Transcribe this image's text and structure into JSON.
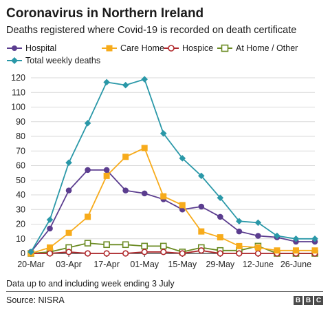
{
  "header": {
    "title": "Coronavirus in Northern Ireland",
    "subtitle": "Deaths registered where Covid-19 is recorded on death certificate"
  },
  "footer": {
    "note": "Data up to and including week ending 3 July",
    "source": "Source: NISRA",
    "logo_letters": [
      "B",
      "B",
      "C"
    ]
  },
  "colors": {
    "hospital": "#5b3d8f",
    "care_home": "#f7ab1b",
    "hospice": "#b0272b",
    "at_home": "#6a8a22",
    "total": "#2a98a8",
    "grid": "#d9d9d9",
    "axis": "#333333"
  },
  "chart_data": {
    "type": "line",
    "title": "Coronavirus in Northern Ireland",
    "subtitle": "Deaths registered where Covid-19 is recorded on death certificate",
    "xlabel": "",
    "ylabel": "",
    "ylim": [
      0,
      120
    ],
    "yticks": [
      0,
      10,
      20,
      30,
      40,
      50,
      60,
      70,
      80,
      90,
      100,
      110,
      120
    ],
    "xtick_labels": [
      "20-Mar",
      "03-Apr",
      "17-Apr",
      "01-May",
      "15-May",
      "29-May",
      "12-June",
      "26-June"
    ],
    "grid": true,
    "legend_position": "top",
    "x": [
      "20-Mar",
      "27-Mar",
      "03-Apr",
      "10-Apr",
      "17-Apr",
      "24-Apr",
      "01-May",
      "08-May",
      "15-May",
      "22-May",
      "29-May",
      "05-June",
      "12-June",
      "19-June",
      "26-June",
      "03-July"
    ],
    "series": [
      {
        "name": "Hospital",
        "marker": "circle-filled",
        "values": [
          1,
          17,
          43,
          57,
          57,
          43,
          41,
          37,
          30,
          32,
          25,
          15,
          12,
          11,
          8,
          8
        ]
      },
      {
        "name": "Care Home",
        "marker": "square-filled",
        "values": [
          0,
          4,
          14,
          25,
          53,
          66,
          72,
          39,
          33,
          15,
          11,
          5,
          4,
          2,
          2,
          2
        ]
      },
      {
        "name": "Hospice",
        "marker": "circle-open",
        "values": [
          0,
          0,
          1,
          0,
          0,
          0,
          1,
          1,
          0,
          2,
          0,
          0,
          0,
          0,
          0,
          0
        ]
      },
      {
        "name": "At Home / Other",
        "marker": "square-open",
        "values": [
          0,
          1,
          4,
          7,
          6,
          6,
          5,
          5,
          1,
          4,
          2,
          2,
          5,
          0,
          0,
          0
        ]
      },
      {
        "name": "Total weekly deaths",
        "marker": "diamond-filled",
        "values": [
          1,
          23,
          62,
          89,
          117,
          115,
          119,
          82,
          65,
          53,
          38,
          22,
          21,
          12,
          10,
          10
        ]
      }
    ]
  }
}
